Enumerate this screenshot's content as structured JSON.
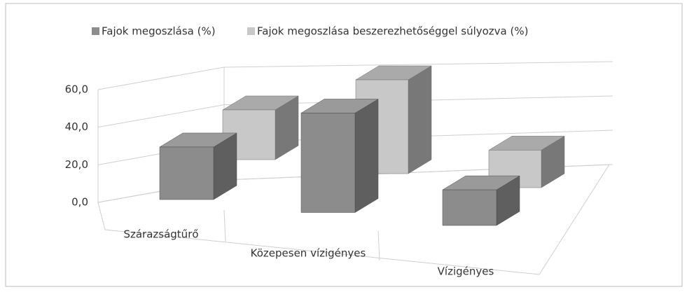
{
  "chart_data": {
    "type": "bar3d",
    "categories": [
      "Szárazságtűrő",
      "Közepesen vízigényes",
      "Vízigényes"
    ],
    "series": [
      {
        "name": "Fajok megoszlása (%)",
        "color": "#8c8c8c",
        "values": [
          28,
          53,
          19
        ]
      },
      {
        "name": "Fajok megoszlása beszerezhetőséggel súlyozva (%)",
        "color": "#c8c8c8",
        "values": [
          26.5,
          50,
          20
        ]
      }
    ],
    "ylim": [
      0,
      60
    ],
    "yticks": [
      {
        "value": 0,
        "label": "0,0"
      },
      {
        "value": 20,
        "label": "20,0"
      },
      {
        "value": 40,
        "label": "40,0"
      },
      {
        "value": 60,
        "label": "60,0"
      }
    ],
    "grid": true
  }
}
